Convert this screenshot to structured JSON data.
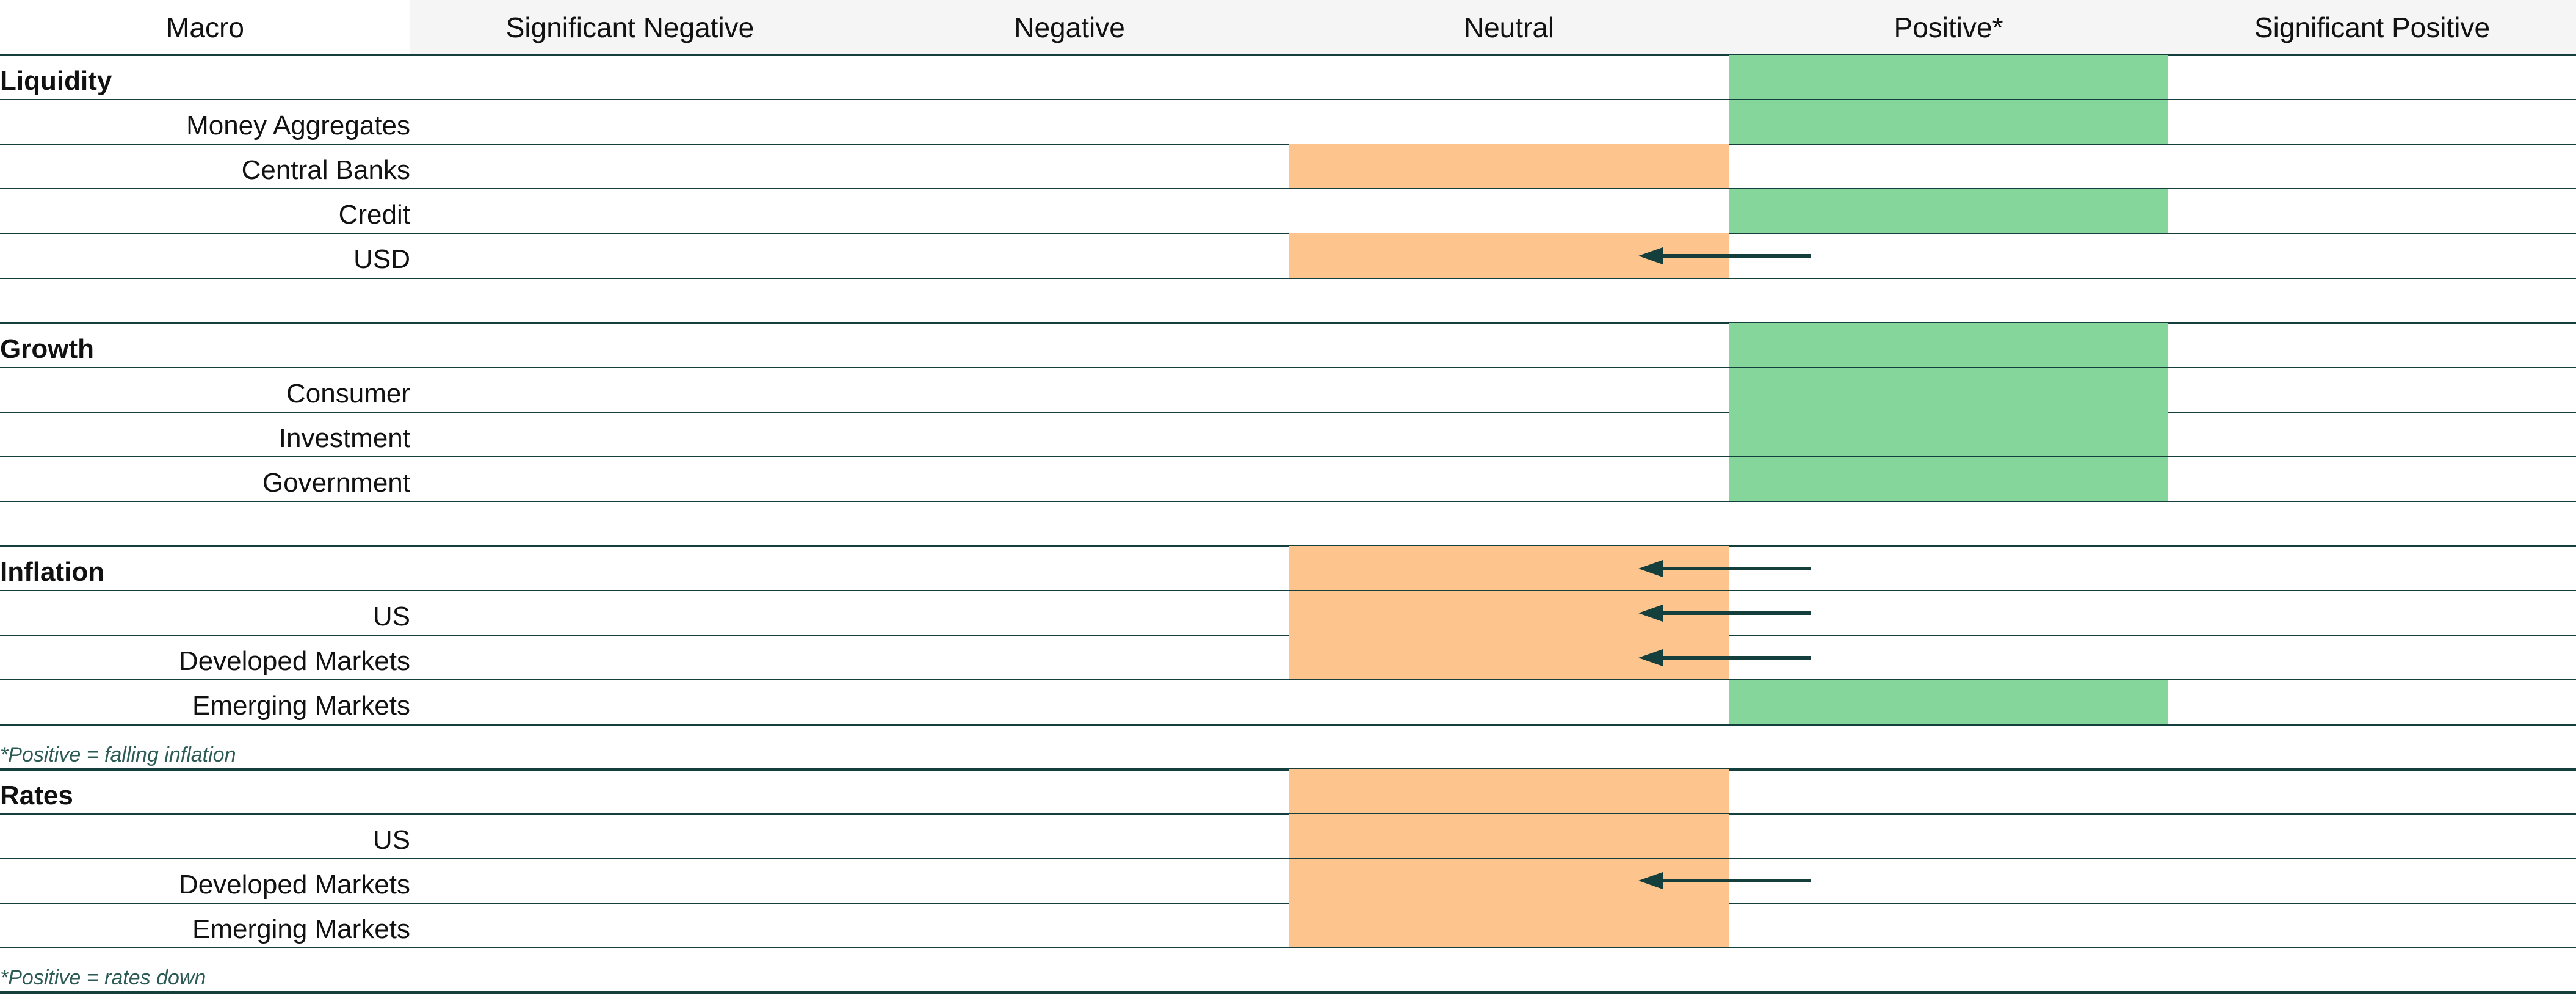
{
  "colors": {
    "positive": "#84d69b",
    "neutral": "#fec48e",
    "rule": "#143f3c",
    "arrow": "#143f3c",
    "note": "#2c5a54",
    "header_band": "#f4f5f4"
  },
  "header": {
    "corner": "Macro",
    "columns": [
      "Significant Negative",
      "Negative",
      "Neutral",
      "Positive*",
      "Significant Positive"
    ]
  },
  "chart_data": {
    "type": "table",
    "title": "",
    "columns": [
      "Significant Negative",
      "Negative",
      "Neutral",
      "Positive*",
      "Significant Positive"
    ],
    "rows": [
      {
        "label": "Liquidity",
        "kind": "group",
        "rating": "Positive*",
        "arrow": false
      },
      {
        "label": "Money Aggregates",
        "kind": "item",
        "rating": "Positive*",
        "arrow": false
      },
      {
        "label": "Central Banks",
        "kind": "item",
        "rating": "Neutral",
        "arrow": false
      },
      {
        "label": "Credit",
        "kind": "item",
        "rating": "Positive*",
        "arrow": false
      },
      {
        "label": "USD",
        "kind": "item",
        "rating": "Neutral",
        "arrow": true,
        "previous_rating": "Positive*"
      },
      {
        "label": "",
        "kind": "spacer"
      },
      {
        "label": "Growth",
        "kind": "group",
        "rating": "Positive*",
        "arrow": false
      },
      {
        "label": "Consumer",
        "kind": "item",
        "rating": "Positive*",
        "arrow": false
      },
      {
        "label": "Investment",
        "kind": "item",
        "rating": "Positive*",
        "arrow": false
      },
      {
        "label": "Government",
        "kind": "item",
        "rating": "Positive*",
        "arrow": false
      },
      {
        "label": "",
        "kind": "spacer"
      },
      {
        "label": "Inflation",
        "kind": "group",
        "rating": "Neutral",
        "arrow": true,
        "previous_rating": "Positive*"
      },
      {
        "label": "US",
        "kind": "item",
        "rating": "Neutral",
        "arrow": true,
        "previous_rating": "Positive*"
      },
      {
        "label": "Developed Markets",
        "kind": "item",
        "rating": "Neutral",
        "arrow": true,
        "previous_rating": "Positive*"
      },
      {
        "label": "Emerging Markets",
        "kind": "item",
        "rating": "Positive*",
        "arrow": false
      },
      {
        "label": "*Positive = falling inflation",
        "kind": "note"
      },
      {
        "label": "Rates",
        "kind": "group",
        "rating": "Neutral",
        "arrow": false
      },
      {
        "label": "US",
        "kind": "item",
        "rating": "Neutral",
        "arrow": false
      },
      {
        "label": "Developed Markets",
        "kind": "item",
        "rating": "Neutral",
        "arrow": true,
        "previous_rating": "Positive*"
      },
      {
        "label": "Emerging Markets",
        "kind": "item",
        "rating": "Neutral",
        "arrow": false
      },
      {
        "label": "*Positive = rates down",
        "kind": "note"
      }
    ]
  }
}
